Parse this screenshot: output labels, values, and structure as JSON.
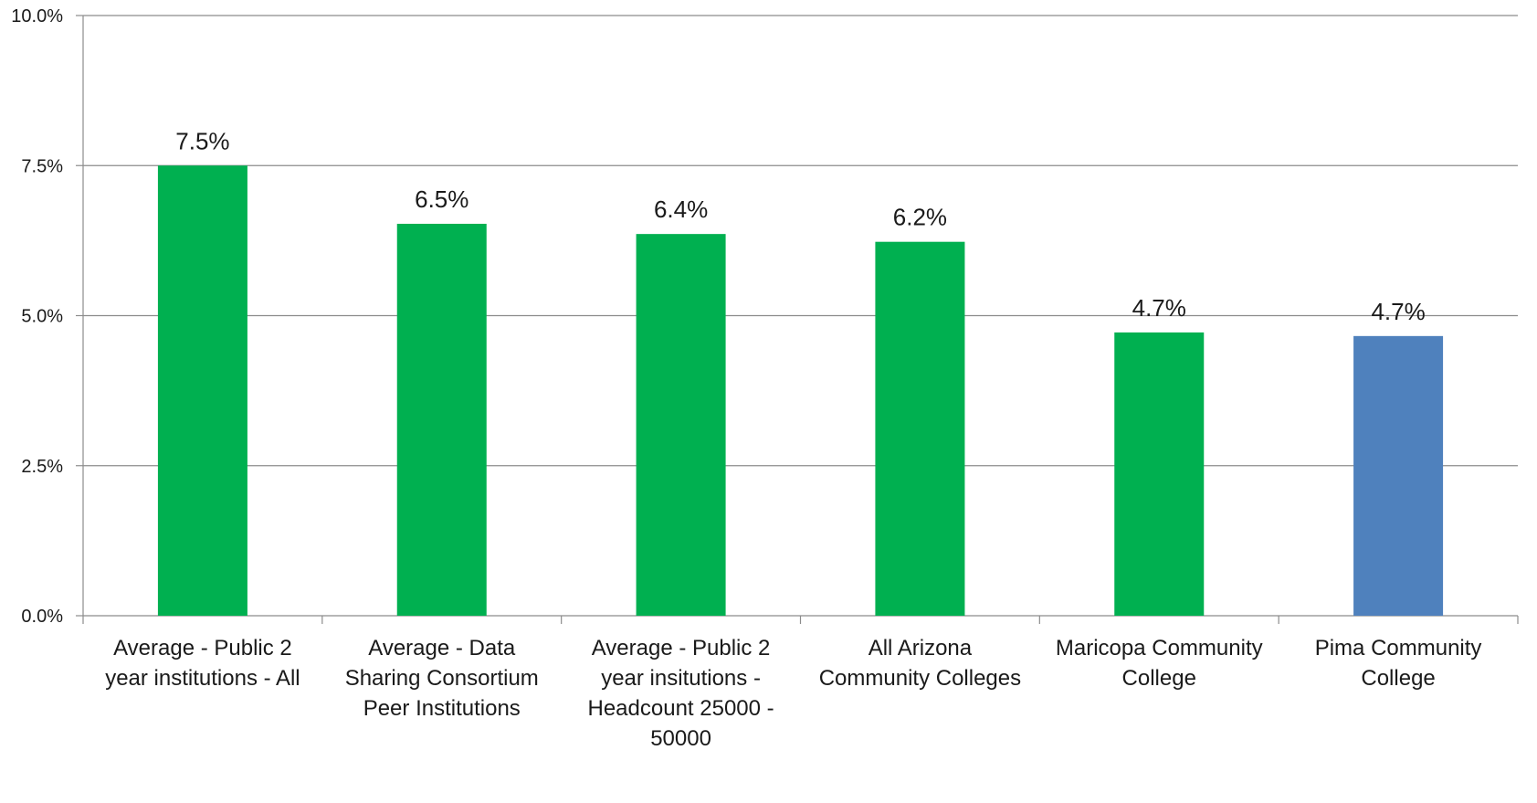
{
  "chart_data": {
    "type": "bar",
    "title": "",
    "xlabel": "",
    "ylabel": "",
    "ylim": [
      0,
      10
    ],
    "y_ticks": [
      {
        "value": 0,
        "label": "0.0%"
      },
      {
        "value": 2.5,
        "label": "2.5%"
      },
      {
        "value": 5,
        "label": "5.0%"
      },
      {
        "value": 7.5,
        "label": "7.5%"
      },
      {
        "value": 10,
        "label": "10.0%"
      }
    ],
    "grid": true,
    "legend": "none",
    "categories": [
      [
        "Average - Public 2",
        "year institutions - All"
      ],
      [
        "Average - Data",
        "Sharing Consortium",
        "Peer Institutions"
      ],
      [
        "Average - Public 2",
        "year insitutions -",
        "Headcount 25000 -",
        "50000"
      ],
      [
        "All Arizona",
        "Community Colleges"
      ],
      [
        "Maricopa Community",
        "College"
      ],
      [
        "Pima Community",
        "College"
      ]
    ],
    "values": [
      7.5,
      6.53,
      6.36,
      6.23,
      4.72,
      4.66
    ],
    "data_labels": [
      "7.5%",
      "6.5%",
      "6.4%",
      "6.2%",
      "4.7%",
      "4.7%"
    ],
    "bar_colors": [
      "#00b050",
      "#00b050",
      "#00b050",
      "#00b050",
      "#00b050",
      "#4f81bd"
    ]
  }
}
